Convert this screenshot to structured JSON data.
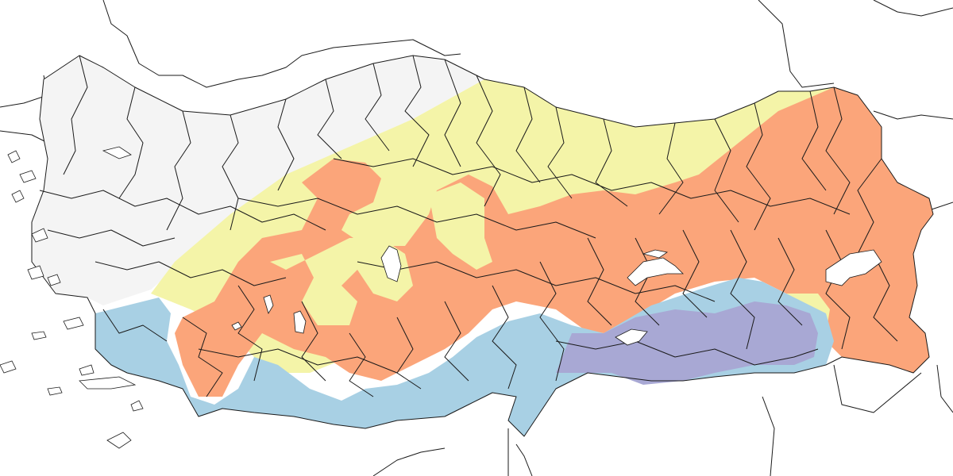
{
  "map": {
    "zones": [
      {
        "key": "none",
        "color": "#f4f4f4"
      },
      {
        "key": "yellow",
        "color": "#f4f4a8"
      },
      {
        "key": "orange",
        "color": "#fba57a"
      },
      {
        "key": "blue",
        "color": "#a8d0e4"
      },
      {
        "key": "purple",
        "color": "#a8a8d4"
      }
    ],
    "lake_color": "#ffffff",
    "border_color": "#1a1a1a"
  }
}
